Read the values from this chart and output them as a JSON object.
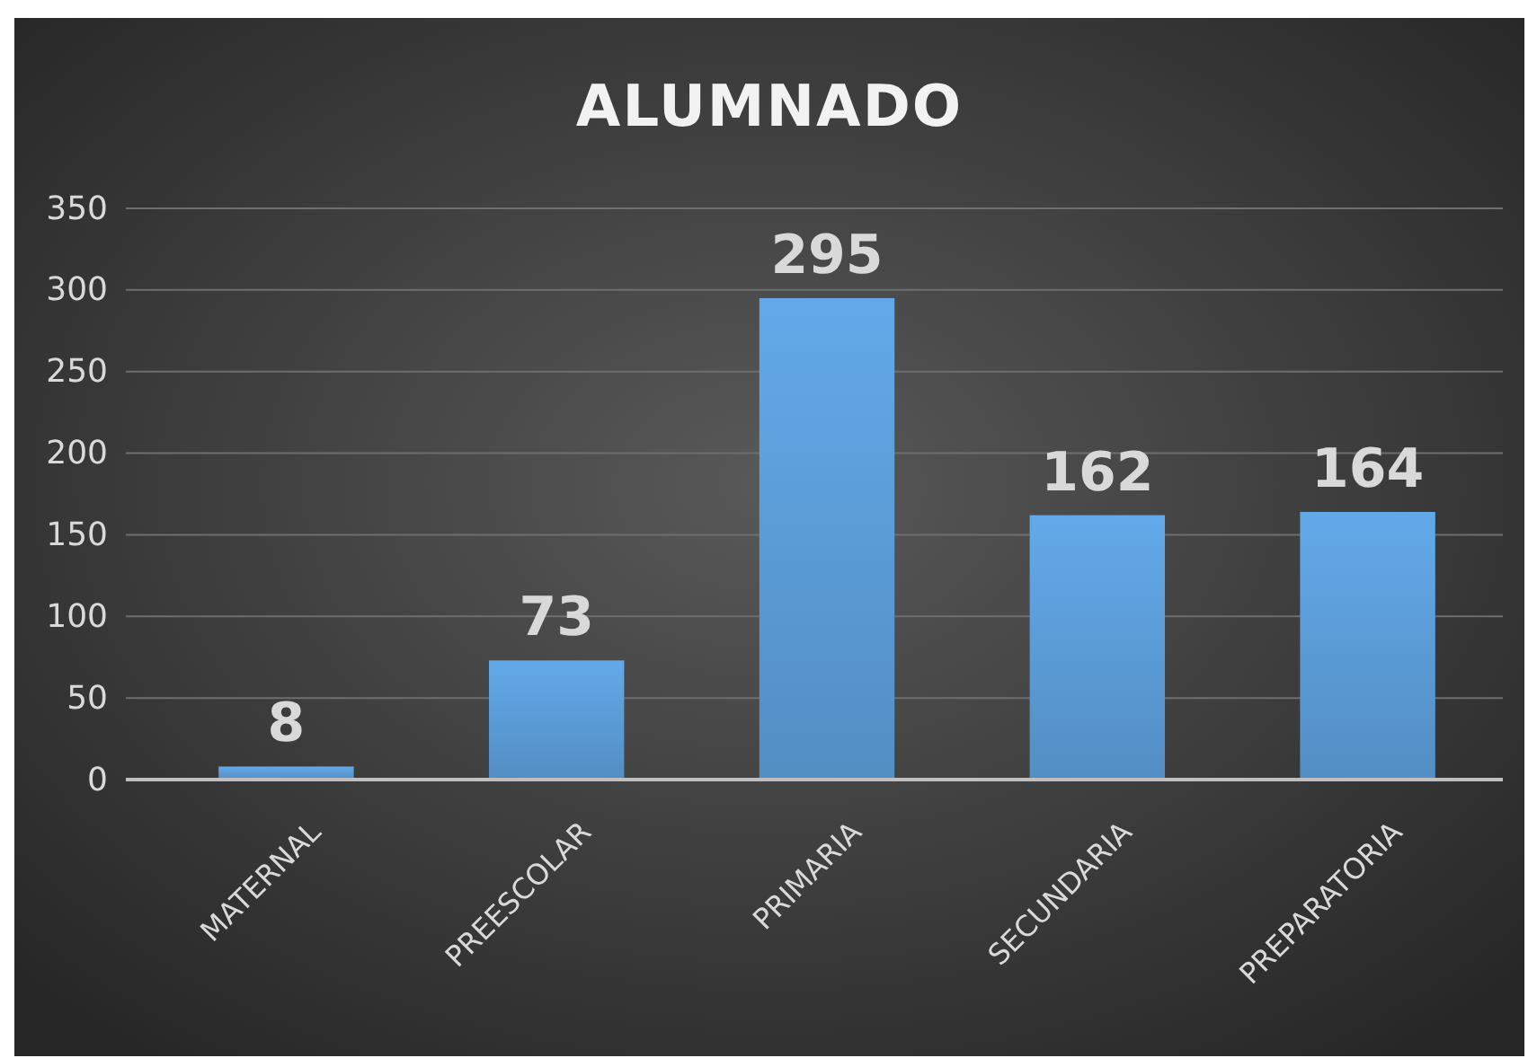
{
  "chart_data": {
    "type": "bar",
    "title": "ALUMNADO",
    "categories": [
      "MATERNAL",
      "PREESCOLAR",
      "PRIMARIA",
      "SECUNDARIA",
      "PREPARATORIA"
    ],
    "values": [
      8,
      73,
      295,
      162,
      164
    ],
    "color": "#5b9bd5",
    "ylim": [
      0,
      350
    ],
    "yticks": [
      0,
      50,
      100,
      150,
      200,
      250,
      300,
      350
    ],
    "grid": "y",
    "data_labels": true
  }
}
